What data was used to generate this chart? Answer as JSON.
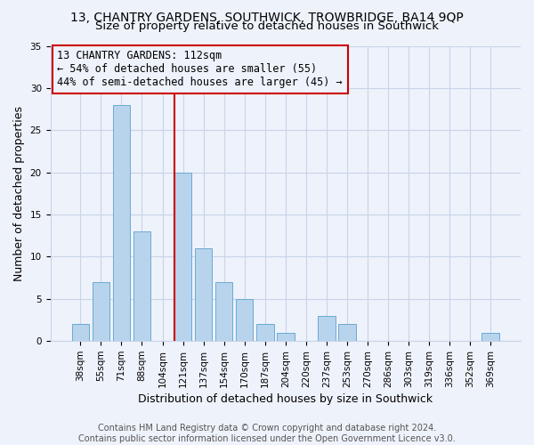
{
  "title1": "13, CHANTRY GARDENS, SOUTHWICK, TROWBRIDGE, BA14 9QP",
  "title2": "Size of property relative to detached houses in Southwick",
  "xlabel": "Distribution of detached houses by size in Southwick",
  "ylabel": "Number of detached properties",
  "footer1": "Contains HM Land Registry data © Crown copyright and database right 2024.",
  "footer2": "Contains public sector information licensed under the Open Government Licence v3.0.",
  "bar_labels": [
    "38sqm",
    "55sqm",
    "71sqm",
    "88sqm",
    "104sqm",
    "121sqm",
    "137sqm",
    "154sqm",
    "170sqm",
    "187sqm",
    "204sqm",
    "220sqm",
    "237sqm",
    "253sqm",
    "270sqm",
    "286sqm",
    "303sqm",
    "319sqm",
    "336sqm",
    "352sqm",
    "369sqm"
  ],
  "bar_values": [
    2,
    7,
    28,
    13,
    0,
    20,
    11,
    7,
    5,
    2,
    1,
    0,
    3,
    2,
    0,
    0,
    0,
    0,
    0,
    0,
    1
  ],
  "bar_color": "#b8d4ec",
  "bar_edgecolor": "#6aaad4",
  "annotation_box_text": "13 CHANTRY GARDENS: 112sqm\n← 54% of detached houses are smaller (55)\n44% of semi-detached houses are larger (45) →",
  "vline_x": 4.575,
  "vline_color": "#cc0000",
  "annotation_box_color": "#cc0000",
  "ylim": [
    0,
    35
  ],
  "yticks": [
    0,
    5,
    10,
    15,
    20,
    25,
    30,
    35
  ],
  "bg_color": "#eef2fb",
  "grid_color": "#c8d4e8",
  "title_fontsize": 10,
  "subtitle_fontsize": 9.5,
  "axis_label_fontsize": 9,
  "tick_fontsize": 7.5,
  "annotation_fontsize": 8.5,
  "footer_fontsize": 7
}
